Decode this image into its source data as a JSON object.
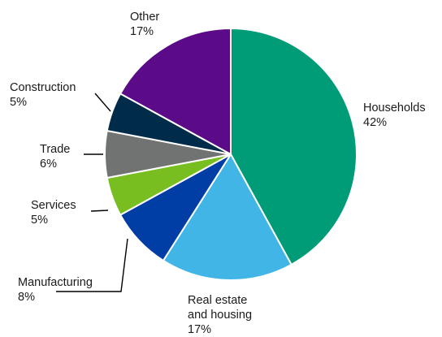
{
  "chart_data": {
    "type": "pie",
    "title": "",
    "slices": [
      {
        "label": [
          "Households"
        ],
        "value_label": "42%",
        "value": 42,
        "color": "#009B77"
      },
      {
        "label": [
          "Real estate",
          "and housing"
        ],
        "value_label": "17%",
        "value": 17,
        "color": "#41B6E6"
      },
      {
        "label": [
          "Manufacturing"
        ],
        "value_label": "8%",
        "value": 8,
        "color": "#003DA5"
      },
      {
        "label": [
          "Services"
        ],
        "value_label": "5%",
        "value": 5,
        "color": "#78BE20"
      },
      {
        "label": [
          "Trade"
        ],
        "value_label": "6%",
        "value": 6,
        "color": "#707372"
      },
      {
        "label": [
          "Construction"
        ],
        "value_label": "5%",
        "value": 5,
        "color": "#002B49"
      },
      {
        "label": [
          "Other"
        ],
        "value_label": "17%",
        "value": 17,
        "color": "#5B0A88"
      }
    ],
    "start_angle": "12 o'clock",
    "direction": "clockwise",
    "legend": "none"
  }
}
